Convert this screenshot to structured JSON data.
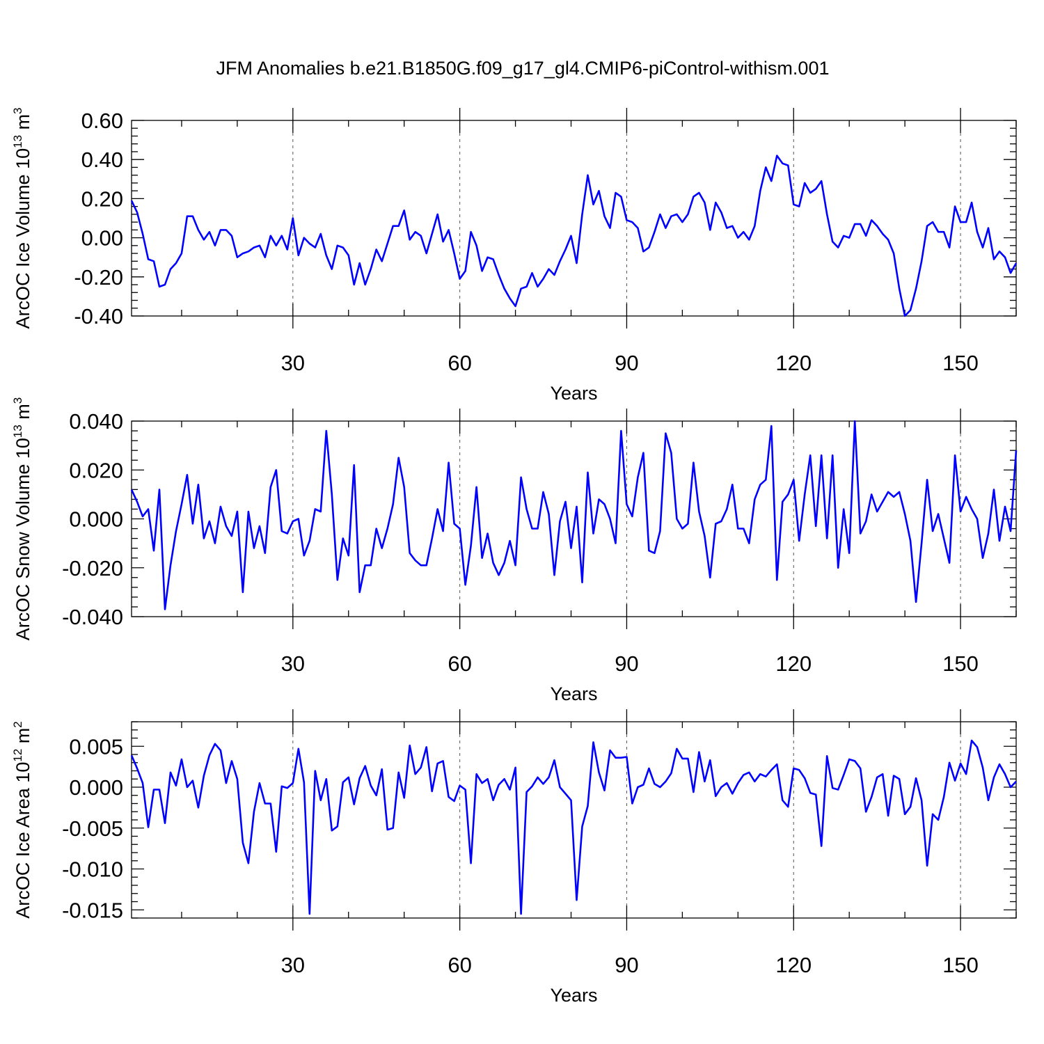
{
  "title": "JFM Anomalies b.e21.B1850G.f09_g17_gl4.CMIP6-piControl-withism.001",
  "colors": {
    "line": "#0000ff",
    "axes": "#000000",
    "grid": "#555555"
  },
  "chart_data": [
    {
      "type": "line",
      "xlabel": "Years",
      "ylabel_main": "ArcOC Ice Volume 10",
      "ylabel_exp": "13",
      "ylabel_unit": "m",
      "ylabel_unit_exp": "3",
      "xlim": [
        1,
        160
      ],
      "ylim": [
        -0.4,
        0.6
      ],
      "xticks": [
        30,
        60,
        90,
        120,
        150
      ],
      "xtick_labels": [
        "30",
        "60",
        "90",
        "120",
        "150"
      ],
      "yticks": [
        0.6,
        0.4,
        0.2,
        0.0,
        -0.2,
        -0.4
      ],
      "ytick_labels": [
        "0.60",
        "0.40",
        "0.20",
        "0.00",
        "-0.20",
        "-0.40"
      ],
      "grid": "vertical dashed at major x ticks",
      "series": [
        {
          "x_start": 1,
          "values": [
            0.19,
            0.13,
            0.02,
            -0.11,
            -0.12,
            -0.25,
            -0.24,
            -0.16,
            -0.13,
            -0.08,
            0.11,
            0.11,
            0.04,
            -0.01,
            0.03,
            -0.04,
            0.04,
            0.04,
            0.01,
            -0.1,
            -0.08,
            -0.07,
            -0.05,
            -0.04,
            -0.1,
            0.01,
            -0.04,
            0.01,
            -0.06,
            0.1,
            -0.09,
            0.0,
            -0.03,
            -0.05,
            0.02,
            -0.09,
            -0.16,
            -0.04,
            -0.05,
            -0.09,
            -0.24,
            -0.13,
            -0.24,
            -0.16,
            -0.06,
            -0.12,
            -0.03,
            0.06,
            0.06,
            0.14,
            -0.01,
            0.03,
            0.01,
            -0.08,
            0.02,
            0.12,
            -0.02,
            0.04,
            -0.08,
            -0.21,
            -0.17,
            0.03,
            -0.04,
            -0.17,
            -0.1,
            -0.11,
            -0.19,
            -0.26,
            -0.31,
            -0.35,
            -0.26,
            -0.25,
            -0.18,
            -0.25,
            -0.21,
            -0.16,
            -0.19,
            -0.12,
            -0.06,
            0.01,
            -0.13,
            0.12,
            0.32,
            0.17,
            0.24,
            0.11,
            0.05,
            0.23,
            0.21,
            0.09,
            0.08,
            0.05,
            -0.07,
            -0.05,
            0.03,
            0.12,
            0.05,
            0.11,
            0.12,
            0.08,
            0.12,
            0.21,
            0.23,
            0.18,
            0.04,
            0.18,
            0.13,
            0.05,
            0.06,
            0.0,
            0.03,
            -0.01,
            0.06,
            0.24,
            0.36,
            0.29,
            0.42,
            0.38,
            0.37,
            0.17,
            0.16,
            0.28,
            0.23,
            0.25,
            0.29,
            0.12,
            -0.02,
            -0.05,
            0.01,
            0.0,
            0.07,
            0.07,
            0.01,
            0.09,
            0.06,
            0.02,
            -0.01,
            -0.08,
            -0.26,
            -0.4,
            -0.37,
            -0.26,
            -0.12,
            0.06,
            0.08,
            0.03,
            0.03,
            -0.05,
            0.16,
            0.08,
            0.08,
            0.18,
            0.03,
            -0.05,
            0.05,
            -0.11,
            -0.07,
            -0.1,
            -0.18,
            -0.13
          ]
        }
      ]
    },
    {
      "type": "line",
      "xlabel": "Years",
      "ylabel_main": "ArcOC Snow Volume 10",
      "ylabel_exp": "13",
      "ylabel_unit": "m",
      "ylabel_unit_exp": "3",
      "xlim": [
        1,
        160
      ],
      "ylim": [
        -0.04,
        0.04
      ],
      "xticks": [
        30,
        60,
        90,
        120,
        150
      ],
      "xtick_labels": [
        "30",
        "60",
        "90",
        "120",
        "150"
      ],
      "yticks": [
        0.04,
        0.02,
        0.0,
        -0.02,
        -0.04
      ],
      "ytick_labels": [
        "0.040",
        "0.020",
        "0.000",
        "-0.020",
        "-0.040"
      ],
      "grid": "vertical dashed at major x ticks",
      "series": [
        {
          "x_start": 1,
          "values": [
            0.012,
            0.007,
            0.001,
            0.004,
            -0.013,
            0.012,
            -0.037,
            -0.019,
            -0.005,
            0.006,
            0.018,
            -0.002,
            0.014,
            -0.008,
            -0.001,
            -0.01,
            0.005,
            -0.003,
            -0.007,
            0.003,
            -0.03,
            0.003,
            -0.012,
            -0.003,
            -0.014,
            0.013,
            0.02,
            -0.005,
            -0.006,
            -0.001,
            0.0,
            -0.015,
            -0.009,
            0.004,
            0.003,
            0.036,
            0.01,
            -0.025,
            -0.008,
            -0.015,
            0.022,
            -0.03,
            -0.019,
            -0.019,
            -0.004,
            -0.012,
            -0.004,
            0.006,
            0.025,
            0.013,
            -0.014,
            -0.017,
            -0.019,
            -0.019,
            -0.008,
            0.004,
            -0.005,
            0.023,
            -0.002,
            -0.004,
            -0.027,
            -0.011,
            0.013,
            -0.016,
            -0.006,
            -0.018,
            -0.023,
            -0.018,
            -0.009,
            -0.019,
            0.017,
            0.004,
            -0.004,
            -0.004,
            0.011,
            0.002,
            -0.023,
            -0.001,
            0.007,
            -0.012,
            0.005,
            -0.026,
            0.019,
            -0.006,
            0.008,
            0.006,
            0.0,
            -0.01,
            0.036,
            0.006,
            0.001,
            0.017,
            0.027,
            -0.013,
            -0.014,
            -0.005,
            0.035,
            0.027,
            0.0,
            -0.004,
            -0.002,
            0.023,
            0.003,
            -0.007,
            -0.024,
            -0.002,
            -0.001,
            0.004,
            0.014,
            -0.004,
            -0.004,
            -0.01,
            0.008,
            0.014,
            0.016,
            0.038,
            -0.025,
            0.007,
            0.01,
            0.016,
            -0.009,
            0.01,
            0.026,
            -0.003,
            0.026,
            -0.008,
            0.026,
            -0.02,
            0.004,
            -0.014,
            0.04,
            -0.006,
            -0.001,
            0.01,
            0.003,
            0.007,
            0.011,
            0.009,
            0.011,
            0.002,
            -0.009,
            -0.034,
            -0.01,
            0.016,
            -0.005,
            0.002,
            -0.008,
            -0.018,
            0.026,
            0.003,
            0.009,
            0.004,
            0.0,
            -0.016,
            -0.006,
            0.012,
            -0.009,
            0.005,
            -0.005,
            0.028
          ]
        }
      ]
    },
    {
      "type": "line",
      "xlabel": "Years",
      "ylabel_main": "ArcOC Ice Area 10",
      "ylabel_exp": "12",
      "ylabel_unit": "m",
      "ylabel_unit_exp": "2",
      "xlim": [
        1,
        160
      ],
      "ylim": [
        -0.016,
        0.008
      ],
      "xticks": [
        30,
        60,
        90,
        120,
        150
      ],
      "xtick_labels": [
        "30",
        "60",
        "90",
        "120",
        "150"
      ],
      "yticks": [
        0.005,
        0.0,
        -0.005,
        -0.01,
        -0.015
      ],
      "ytick_labels": [
        "0.005",
        "0.000",
        "-0.005",
        "-0.010",
        "-0.015"
      ],
      "grid": "vertical dashed at major x ticks",
      "series": [
        {
          "x_start": 1,
          "values": [
            0.0039,
            0.0023,
            0.0005,
            -0.0049,
            -0.0003,
            -0.0003,
            -0.0044,
            0.0018,
            0.0002,
            0.0034,
            0.0,
            0.0008,
            -0.0025,
            0.0014,
            0.0039,
            0.0053,
            0.0045,
            0.0005,
            0.0032,
            0.001,
            -0.0068,
            -0.0093,
            -0.003,
            0.0005,
            -0.002,
            -0.002,
            -0.0079,
            0.0001,
            -0.0001,
            0.0005,
            0.0047,
            0.0006,
            -0.0155,
            0.002,
            -0.0016,
            0.001,
            -0.0053,
            -0.0048,
            0.0006,
            0.0012,
            -0.0021,
            0.0011,
            0.0026,
            0.0002,
            -0.001,
            0.0022,
            -0.0052,
            -0.005,
            0.0018,
            -0.0013,
            0.0051,
            0.0016,
            0.0024,
            0.0049,
            -0.0005,
            0.0029,
            0.0032,
            -0.0012,
            -0.0017,
            0.0002,
            -0.0003,
            -0.0093,
            0.0016,
            0.0005,
            0.001,
            -0.0016,
            0.0003,
            0.001,
            -0.0003,
            0.0024,
            -0.0155,
            -0.0006,
            0.0001,
            0.0012,
            0.0004,
            0.0012,
            0.0033,
            0.0,
            -0.0008,
            -0.0016,
            -0.0138,
            -0.0048,
            -0.0023,
            0.0055,
            0.0018,
            -0.0004,
            0.0045,
            0.0036,
            0.0036,
            0.0037,
            -0.002,
            0.0,
            0.0003,
            0.0023,
            0.0004,
            0.0,
            0.0007,
            0.0017,
            0.0047,
            0.0035,
            0.0035,
            -0.0006,
            0.0043,
            0.0007,
            0.0033,
            -0.0011,
            0.0,
            0.0005,
            -0.0008,
            0.0005,
            0.0015,
            0.0018,
            0.0007,
            0.0016,
            0.0013,
            0.0021,
            0.0028,
            -0.0016,
            -0.0024,
            0.0023,
            0.0021,
            0.0011,
            -0.0007,
            -0.0009,
            -0.0072,
            0.0038,
            -0.0001,
            -0.0003,
            0.0015,
            0.0034,
            0.0032,
            0.0023,
            -0.003,
            -0.0012,
            0.0012,
            0.0016,
            -0.0035,
            0.0014,
            0.001,
            -0.0033,
            -0.0024,
            0.0011,
            -0.0016,
            -0.0096,
            -0.0033,
            -0.004,
            -0.0012,
            0.003,
            0.0008,
            0.0029,
            0.0016,
            0.0057,
            0.0049,
            0.0024,
            -0.0016,
            0.0012,
            0.0028,
            0.0016,
            0.0,
            0.0007
          ]
        }
      ]
    }
  ]
}
